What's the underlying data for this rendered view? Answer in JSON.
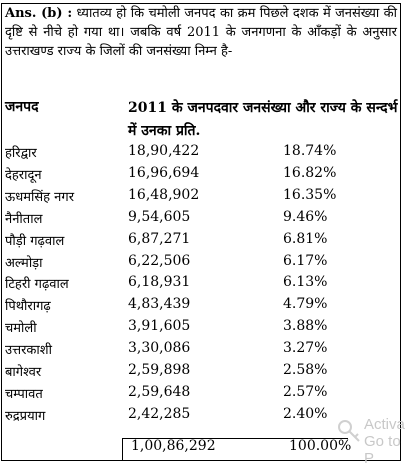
{
  "answer_label": "Ans. (b) :",
  "paragraph": "ध्यातव्य हो कि चमोली जनपद का क्रम पिछले दशक में जनसंख्या की दृष्टि से नीचे हो गया था। जबकि वर्ष 2011 के जनगणना के आँकड़ों के अनुसार उत्तराखण्ड राज्य के जिलों की जनसंख्या निम्न है-",
  "table": {
    "header_district": "जनपद",
    "header_population": "2011 के जनपदवार जनसंख्या और राज्य के सन्दर्भ में उनका प्रति.",
    "rows": [
      {
        "district": "हरिद्वार",
        "population": "18,90,422",
        "percent": "18.74%"
      },
      {
        "district": "देहरादून",
        "population": "16,96,694",
        "percent": "16.82%"
      },
      {
        "district": "ऊधमसिंह नगर",
        "population": "16,48,902",
        "percent": "16.35%"
      },
      {
        "district": "नैनीताल",
        "population": "9,54,605",
        "percent": "9.46%"
      },
      {
        "district": "पौड़ी गढ़वाल",
        "population": "6,87,271",
        "percent": "6.81%"
      },
      {
        "district": "अल्मोड़ा",
        "population": "6,22,506",
        "percent": "6.17%"
      },
      {
        "district": "टिहरी गढ़वाल",
        "population": "6,18,931",
        "percent": "6.13%"
      },
      {
        "district": "पिथौरागढ़",
        "population": "4,83,439",
        "percent": "4.79%"
      },
      {
        "district": "चमोली",
        "population": "3,91,605",
        "percent": "3.88%"
      },
      {
        "district": "उत्तरकाशी",
        "population": "3,30,086",
        "percent": "3.27%"
      },
      {
        "district": "बागेश्वर",
        "population": "2,59,898",
        "percent": "2.58%"
      },
      {
        "district": "चम्पावत",
        "population": "2,59,648",
        "percent": "2.57%"
      },
      {
        "district": "रुद्रप्रयाग",
        "population": "2,42,285",
        "percent": "2.40%"
      }
    ],
    "total_population": "1,00,86,292",
    "total_percent": "100.00%"
  },
  "watermark": {
    "line1": "Activa",
    "line2": "Go to P"
  }
}
